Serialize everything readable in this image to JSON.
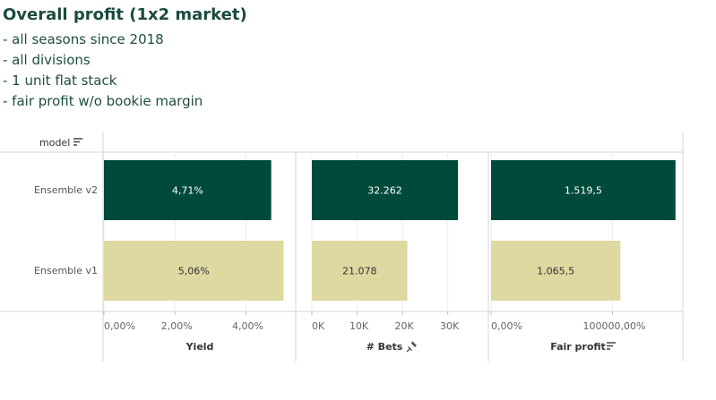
{
  "title": "Overall profit (1x2 market)",
  "notes": [
    "- all seasons since 2018",
    "- all divisions",
    "- 1 unit flat stack",
    "- fair profit w/o bookie margin"
  ],
  "row_header": "model",
  "colors": {
    "dark": "#004a3c",
    "light": "#ded8a1",
    "grid": "#d4d4d4",
    "axis_text": "#666666",
    "label_text": "#555555",
    "title": "#1b4a3f"
  },
  "chart_data": {
    "type": "bar",
    "orientation": "horizontal",
    "categories": [
      "Ensemble v2",
      "Ensemble v1"
    ],
    "panels": [
      {
        "measure": "Yield",
        "values": [
          4.71,
          5.06
        ],
        "labels": [
          "4,71%",
          "5,06%"
        ],
        "xlim": [
          0,
          5.4
        ],
        "ticks": [
          0,
          2,
          4
        ],
        "tick_labels": [
          "0,00%",
          "2,00%",
          "4,00%"
        ],
        "sort_icon": false,
        "pin_icon": false
      },
      {
        "measure": "# Bets",
        "values": [
          32262,
          21078
        ],
        "labels": [
          "32.262",
          "21.078"
        ],
        "xlim": [
          0,
          36000
        ],
        "ticks": [
          0,
          10000,
          20000,
          30000
        ],
        "tick_labels": [
          "0K",
          "10K",
          "20K",
          "30K"
        ],
        "sort_icon": false,
        "pin_icon": true
      },
      {
        "measure": "Fair profit",
        "values": [
          1519.5,
          1065.5
        ],
        "labels": [
          "1.519,5",
          "1.065,5"
        ],
        "xlim": [
          0,
          1580
        ],
        "ticks": [
          0,
          1000
        ],
        "tick_labels": [
          "0,00%",
          "100000,00%"
        ],
        "sort_icon": true,
        "pin_icon": false
      }
    ],
    "bar_colors": [
      "dark",
      "light"
    ],
    "label_colors": [
      "#ffffff",
      "#333333"
    ]
  }
}
